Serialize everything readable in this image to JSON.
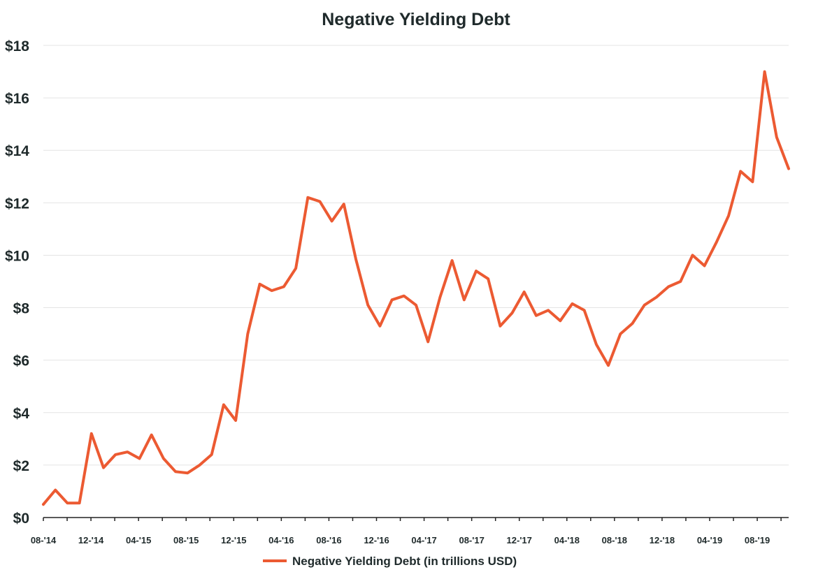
{
  "chart_data": {
    "type": "line",
    "title": "Negative Yielding Debt",
    "xlabel": "",
    "ylabel": "",
    "x_tick_labels": [
      "08-'14",
      "12-'14",
      "04-'15",
      "08-'15",
      "12-'15",
      "04-'16",
      "08-'16",
      "12-'16",
      "04-'17",
      "08-'17",
      "12-'17",
      "04-'18",
      "08-'18",
      "12-'18",
      "04-'19",
      "08-'19"
    ],
    "y_tick_labels": [
      "$0",
      "$2",
      "$4",
      "$6",
      "$8",
      "$10",
      "$12",
      "$14",
      "$16",
      "$18"
    ],
    "ylim": [
      0,
      18
    ],
    "xlim": [
      "2014-08",
      "2019-10"
    ],
    "grid": "horizontal",
    "legend_position": "bottom",
    "colors": {
      "series": "#ec5a32",
      "text": "#1f2a2b",
      "grid": "#e4e4e4"
    },
    "series": [
      {
        "name": "Negative Yielding Debt (in trillions USD)",
        "x": [
          "2014-08",
          "2014-09",
          "2014-10",
          "2014-11",
          "2014-12",
          "2015-01",
          "2015-02",
          "2015-03",
          "2015-04",
          "2015-05",
          "2015-06",
          "2015-07",
          "2015-08",
          "2015-09",
          "2015-10",
          "2015-11",
          "2015-12",
          "2016-01",
          "2016-02",
          "2016-03",
          "2016-04",
          "2016-05",
          "2016-06",
          "2016-07",
          "2016-08",
          "2016-09",
          "2016-10",
          "2016-11",
          "2016-12",
          "2017-01",
          "2017-02",
          "2017-03",
          "2017-04",
          "2017-05",
          "2017-06",
          "2017-07",
          "2017-08",
          "2017-09",
          "2017-10",
          "2017-11",
          "2017-12",
          "2018-01",
          "2018-02",
          "2018-03",
          "2018-04",
          "2018-05",
          "2018-06",
          "2018-07",
          "2018-08",
          "2018-09",
          "2018-10",
          "2018-11",
          "2018-12",
          "2019-01",
          "2019-02",
          "2019-03",
          "2019-04",
          "2019-05",
          "2019-06",
          "2019-07",
          "2019-08",
          "2019-09",
          "2019-10"
        ],
        "values": [
          0.5,
          1.05,
          0.55,
          0.55,
          3.2,
          1.9,
          2.4,
          2.5,
          2.25,
          3.15,
          2.25,
          1.75,
          1.7,
          2.0,
          2.4,
          4.3,
          3.7,
          7.0,
          8.9,
          8.65,
          8.8,
          9.5,
          12.2,
          12.05,
          11.3,
          11.95,
          9.85,
          8.1,
          7.3,
          8.3,
          8.45,
          8.1,
          6.7,
          8.4,
          9.8,
          8.3,
          9.4,
          9.1,
          7.3,
          7.8,
          8.6,
          7.7,
          7.9,
          7.5,
          8.15,
          7.9,
          6.6,
          5.8,
          7.0,
          7.4,
          8.1,
          8.4,
          8.8,
          9.0,
          10.0,
          9.6,
          10.5,
          11.5,
          13.2,
          12.8,
          17.0,
          14.5,
          13.3
        ]
      }
    ]
  }
}
